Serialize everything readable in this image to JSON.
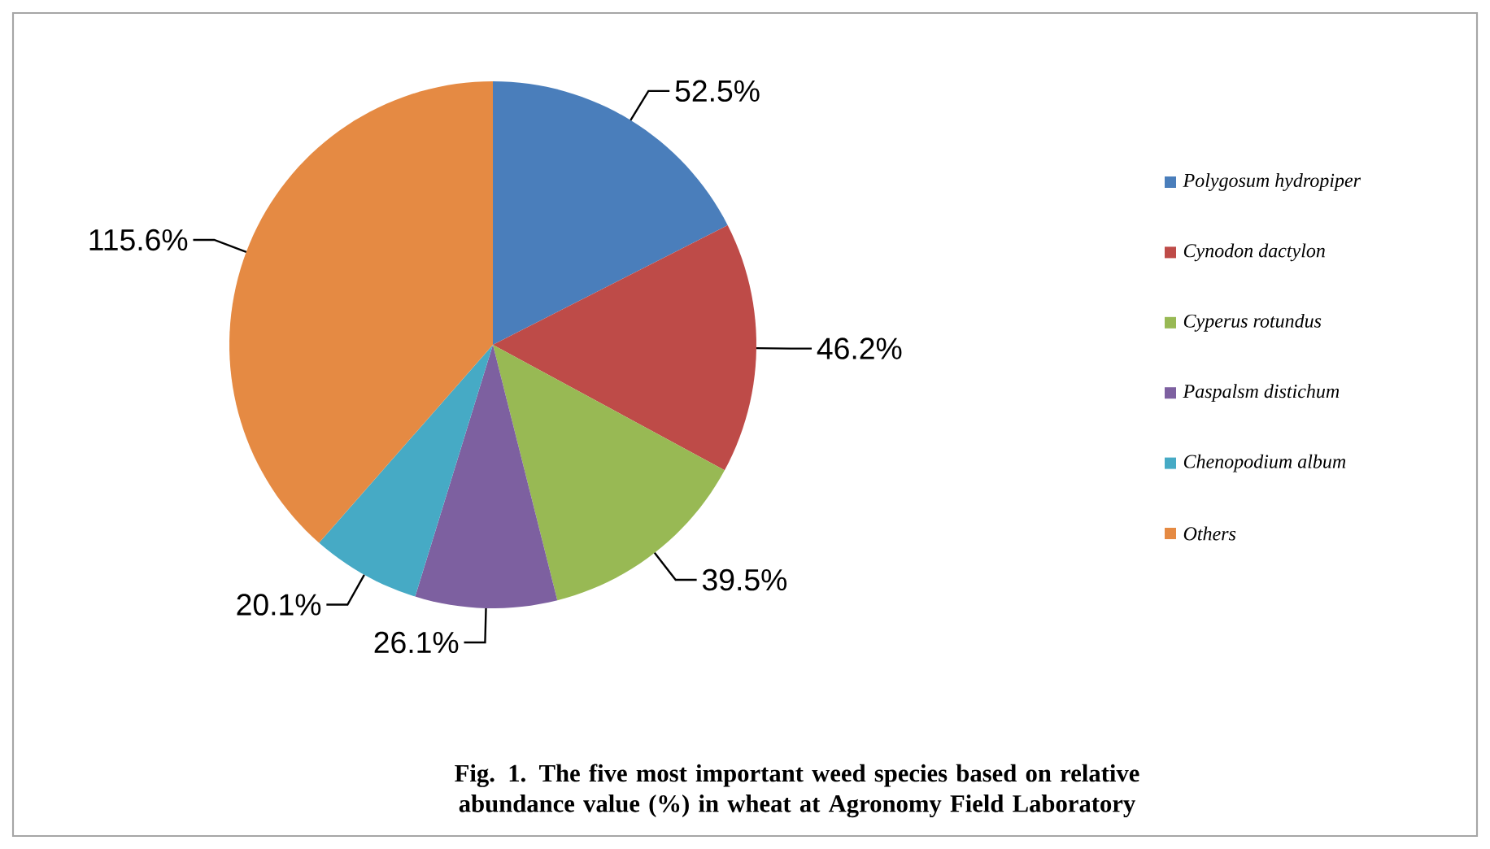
{
  "chart_data": {
    "type": "pie",
    "title": "Fig. 1. The five most important weed species based on relative abundance value (%) in wheat at Agronomy Field Laboratory",
    "categories": [
      "*Polygosum hydropiper*",
      "*Cynodon dactylon*",
      "*Cyperus rotundus*",
      "*Paspalsm distichum*",
      "*Chenopodium album*",
      "*Others*"
    ],
    "values": [
      52.5,
      46.2,
      39.5,
      26.1,
      20.1,
      115.6
    ],
    "value_labels": [
      "52.5%",
      "46.2%",
      "39.5%",
      "26.1%",
      "20.1%",
      "115.6%"
    ],
    "colors": [
      "#4a7ebb",
      "#be4b48",
      "#98b954",
      "#7d60a0",
      "#46aac5",
      "#e58a43"
    ],
    "legend": "right"
  }
}
